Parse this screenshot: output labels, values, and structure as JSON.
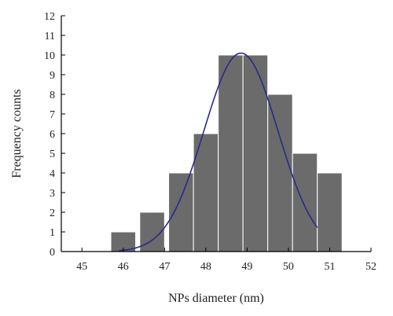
{
  "chart_data": {
    "type": "bar",
    "title": "",
    "xlabel": "NPs diameter (nm)",
    "ylabel": "Frequency counts",
    "xlim": [
      44.5,
      52
    ],
    "ylim": [
      0,
      12
    ],
    "x_ticks": [
      45,
      46,
      47,
      48,
      49,
      50,
      51,
      52
    ],
    "y_ticks": [
      0,
      1,
      2,
      3,
      4,
      5,
      6,
      7,
      8,
      9,
      10,
      11,
      12
    ],
    "bar_width": 0.6,
    "bars": [
      {
        "x": 46.0,
        "value": 1
      },
      {
        "x": 46.7,
        "value": 2
      },
      {
        "x": 47.4,
        "value": 4
      },
      {
        "x": 48.0,
        "value": 6
      },
      {
        "x": 48.6,
        "value": 10
      },
      {
        "x": 49.2,
        "value": 10
      },
      {
        "x": 49.8,
        "value": 8
      },
      {
        "x": 50.4,
        "value": 5
      },
      {
        "x": 51.0,
        "value": 4
      }
    ],
    "fit_curve": {
      "type": "gaussian",
      "center": 48.85,
      "sigma": 0.9,
      "amplitude": 10.1,
      "x_range": [
        45.9,
        50.7
      ]
    },
    "grid": false,
    "colors": {
      "bar": "#6b6b6b",
      "fit": "#2a2a8a"
    }
  }
}
